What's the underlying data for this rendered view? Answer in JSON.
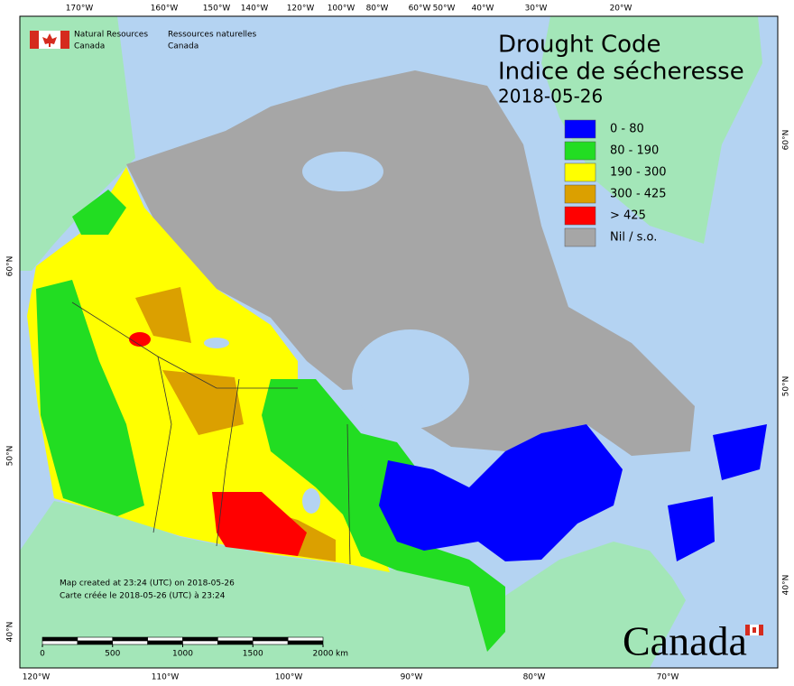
{
  "header": {
    "agency_en": [
      "Natural Resources",
      "Canada"
    ],
    "agency_fr": [
      "Ressources naturelles",
      "Canada"
    ]
  },
  "title": {
    "line1": "Drought Code",
    "line2": "Indice de sécheresse",
    "date": "2018-05-26"
  },
  "legend": [
    {
      "label": "0 - 80",
      "color": "#0000ff"
    },
    {
      "label": "80 - 190",
      "color": "#22dd22"
    },
    {
      "label": "190 - 300",
      "color": "#ffff00"
    },
    {
      "label": "300 - 425",
      "color": "#dba000"
    },
    {
      "label": "> 425",
      "color": "#ff0000"
    },
    {
      "label": "Nil / s.o.",
      "color": "#a6a6a6"
    }
  ],
  "graticule": {
    "top": [
      "170°W",
      "160°W",
      "150°W",
      "140°W",
      "120°W",
      "100°W",
      "80°W",
      "60°W",
      "50°W",
      "40°W",
      "30°W",
      "20°W"
    ],
    "bottom": [
      "120°W",
      "110°W",
      "100°W",
      "90°W",
      "80°W",
      "70°W"
    ],
    "left": [
      "60°N",
      "50°N",
      "40°N"
    ],
    "right": [
      "60°N",
      "50°N",
      "40°N"
    ]
  },
  "notes": [
    "Map created at 23:24 (UTC) on 2018-05-26",
    "Carte créée le 2018-05-26 (UTC) à 23:24"
  ],
  "scale": {
    "ticks": [
      0,
      500,
      1000,
      1500,
      2000
    ],
    "unit": "km"
  },
  "wordmark": "Canada"
}
